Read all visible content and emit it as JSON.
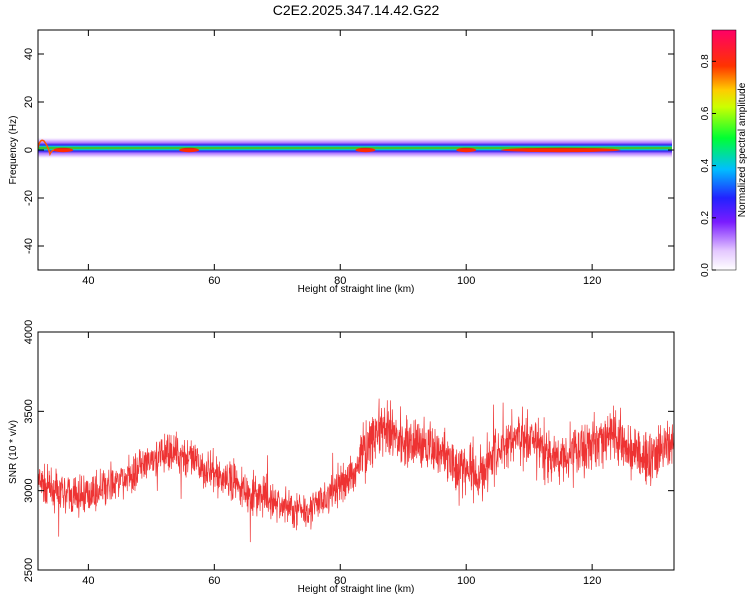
{
  "title": "C2E2.2025.347.14.42.G22",
  "chart_data": [
    {
      "type": "heatmap",
      "xlabel": "Height of straight line (km)",
      "ylabel": "Frequency (Hz)",
      "xlim": [
        32,
        133
      ],
      "ylim": [
        -50,
        50
      ],
      "xticks": [
        40,
        60,
        80,
        100,
        120
      ],
      "yticks": [
        -40,
        -20,
        0,
        20,
        40
      ],
      "grid": false,
      "colorbar": {
        "label": "Normalized spectral amplitude",
        "range": [
          0.0,
          0.92
        ],
        "ticks": [
          0.0,
          0.2,
          0.4,
          0.6,
          0.8
        ],
        "tick_labels": [
          "0.0",
          "0.2",
          "0.4",
          "0.6",
          "0.8"
        ]
      },
      "band": {
        "center_frequency_hz": 0,
        "features": [
          {
            "x": 33,
            "frequency_hz": 3
          },
          {
            "x": 35,
            "frequency_hz": -2
          }
        ],
        "hotspots_x": [
          36,
          56,
          84,
          100,
          115
        ]
      }
    },
    {
      "type": "line",
      "xlabel": "Height of straight line (km)",
      "ylabel": "SNR (10 * v/v)",
      "xlim": [
        32,
        133
      ],
      "ylim": [
        2500,
        4000
      ],
      "xticks": [
        40,
        60,
        80,
        100,
        120
      ],
      "yticks": [
        2500,
        3000,
        3500,
        4000
      ],
      "grid": false,
      "series": [
        {
          "color": "#ee3333",
          "x": [
            32,
            35,
            38,
            42,
            46,
            50,
            53,
            56,
            60,
            63,
            66,
            70,
            73,
            76,
            79,
            82,
            84,
            86,
            89,
            92,
            96,
            99,
            102,
            105,
            108,
            111,
            114,
            117,
            120,
            123,
            126,
            129,
            133
          ],
          "y": [
            3050,
            2990,
            2960,
            3000,
            3080,
            3180,
            3250,
            3200,
            3100,
            3050,
            2980,
            2920,
            2880,
            2900,
            3000,
            3100,
            3280,
            3380,
            3350,
            3300,
            3250,
            3150,
            3100,
            3250,
            3350,
            3280,
            3200,
            3250,
            3300,
            3350,
            3250,
            3200,
            3300
          ]
        }
      ]
    }
  ]
}
